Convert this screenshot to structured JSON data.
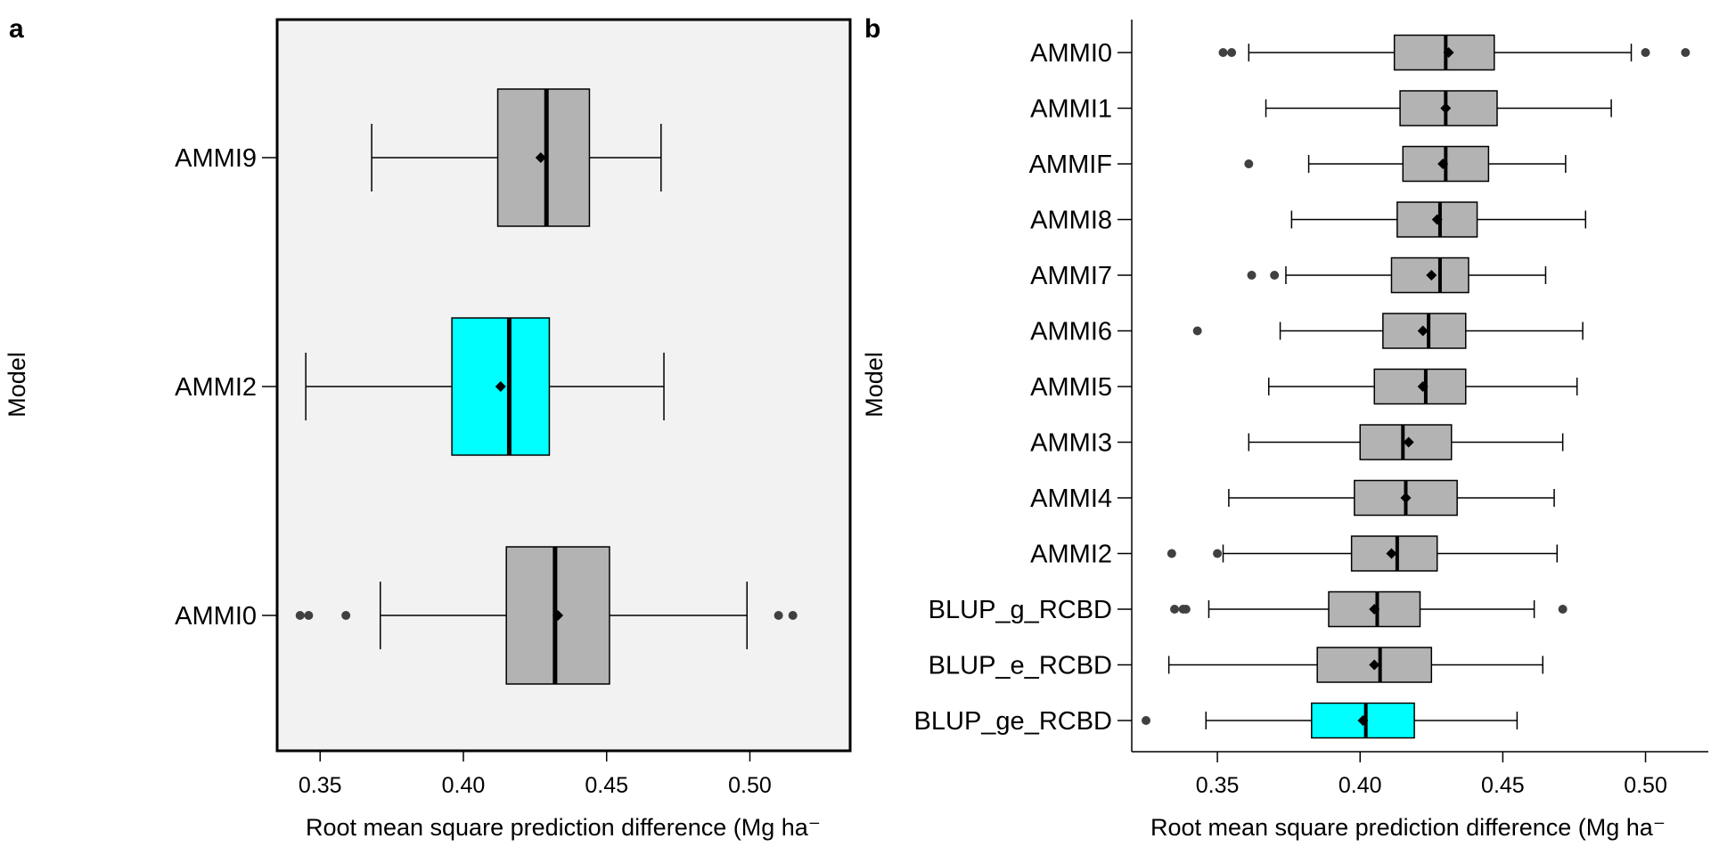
{
  "colors": {
    "box_default": "#b3b3b3",
    "box_highlight": "#00ffff",
    "outlier": "#404040",
    "panel_a_background": "#f2f2f2"
  },
  "chart_data": [
    {
      "type": "boxplot",
      "panel": "a",
      "title": "",
      "xlabel": "Root mean square prediction difference (Mg ha⁻",
      "ylabel": "Model",
      "xlim": [
        0.335,
        0.535
      ],
      "xticks": [
        0.35,
        0.4,
        0.45,
        0.5
      ],
      "xtick_labels": [
        "0.35",
        "0.40",
        "0.45",
        "0.50"
      ],
      "grid": false,
      "categories": [
        "AMMI9",
        "AMMI2",
        "AMMI0"
      ],
      "boxes": [
        {
          "label": "AMMI9",
          "whisker_low": 0.368,
          "q1": 0.412,
          "median": 0.429,
          "q3": 0.444,
          "whisker_high": 0.469,
          "mean": 0.427,
          "outliers": [],
          "highlight": false
        },
        {
          "label": "AMMI2",
          "whisker_low": 0.345,
          "q1": 0.396,
          "median": 0.416,
          "q3": 0.43,
          "whisker_high": 0.47,
          "mean": 0.413,
          "outliers": [],
          "highlight": true
        },
        {
          "label": "AMMI0",
          "whisker_low": 0.371,
          "q1": 0.415,
          "median": 0.432,
          "q3": 0.451,
          "whisker_high": 0.499,
          "mean": 0.433,
          "outliers": [
            0.343,
            0.346,
            0.359,
            0.51,
            0.515
          ],
          "highlight": false
        }
      ]
    },
    {
      "type": "boxplot",
      "panel": "b",
      "title": "",
      "xlabel": "Root mean square prediction difference (Mg ha⁻",
      "ylabel": "Model",
      "xlim": [
        0.32,
        0.522
      ],
      "xticks": [
        0.35,
        0.4,
        0.45,
        0.5
      ],
      "xtick_labels": [
        "0.35",
        "0.40",
        "0.45",
        "0.50"
      ],
      "grid": false,
      "categories": [
        "AMMI0",
        "AMMI1",
        "AMMIF",
        "AMMI8",
        "AMMI7",
        "AMMI6",
        "AMMI5",
        "AMMI3",
        "AMMI4",
        "AMMI2",
        "BLUP_g_RCBD",
        "BLUP_e_RCBD",
        "BLUP_ge_RCBD"
      ],
      "boxes": [
        {
          "label": "AMMI0",
          "whisker_low": 0.361,
          "q1": 0.412,
          "median": 0.43,
          "q3": 0.447,
          "whisker_high": 0.495,
          "mean": 0.431,
          "outliers": [
            0.352,
            0.355,
            0.5,
            0.514
          ],
          "highlight": false
        },
        {
          "label": "AMMI1",
          "whisker_low": 0.367,
          "q1": 0.414,
          "median": 0.43,
          "q3": 0.448,
          "whisker_high": 0.488,
          "mean": 0.43,
          "outliers": [],
          "highlight": false
        },
        {
          "label": "AMMIF",
          "whisker_low": 0.382,
          "q1": 0.415,
          "median": 0.43,
          "q3": 0.445,
          "whisker_high": 0.472,
          "mean": 0.429,
          "outliers": [
            0.361
          ],
          "highlight": false
        },
        {
          "label": "AMMI8",
          "whisker_low": 0.376,
          "q1": 0.413,
          "median": 0.428,
          "q3": 0.441,
          "whisker_high": 0.479,
          "mean": 0.427,
          "outliers": [],
          "highlight": false
        },
        {
          "label": "AMMI7",
          "whisker_low": 0.374,
          "q1": 0.411,
          "median": 0.428,
          "q3": 0.438,
          "whisker_high": 0.465,
          "mean": 0.425,
          "outliers": [
            0.362,
            0.37
          ],
          "highlight": false
        },
        {
          "label": "AMMI6",
          "whisker_low": 0.372,
          "q1": 0.408,
          "median": 0.424,
          "q3": 0.437,
          "whisker_high": 0.478,
          "mean": 0.422,
          "outliers": [
            0.343
          ],
          "highlight": false
        },
        {
          "label": "AMMI5",
          "whisker_low": 0.368,
          "q1": 0.405,
          "median": 0.423,
          "q3": 0.437,
          "whisker_high": 0.476,
          "mean": 0.422,
          "outliers": [],
          "highlight": false
        },
        {
          "label": "AMMI3",
          "whisker_low": 0.361,
          "q1": 0.4,
          "median": 0.415,
          "q3": 0.432,
          "whisker_high": 0.471,
          "mean": 0.417,
          "outliers": [],
          "highlight": false
        },
        {
          "label": "AMMI4",
          "whisker_low": 0.354,
          "q1": 0.398,
          "median": 0.416,
          "q3": 0.434,
          "whisker_high": 0.468,
          "mean": 0.416,
          "outliers": [],
          "highlight": false
        },
        {
          "label": "AMMI2",
          "whisker_low": 0.352,
          "q1": 0.397,
          "median": 0.413,
          "q3": 0.427,
          "whisker_high": 0.469,
          "mean": 0.411,
          "outliers": [
            0.334,
            0.35
          ],
          "highlight": false
        },
        {
          "label": "BLUP_g_RCBD",
          "whisker_low": 0.347,
          "q1": 0.389,
          "median": 0.406,
          "q3": 0.421,
          "whisker_high": 0.461,
          "mean": 0.405,
          "outliers": [
            0.335,
            0.338,
            0.339,
            0.471
          ],
          "highlight": false
        },
        {
          "label": "BLUP_e_RCBD",
          "whisker_low": 0.333,
          "q1": 0.385,
          "median": 0.407,
          "q3": 0.425,
          "whisker_high": 0.464,
          "mean": 0.405,
          "outliers": [],
          "highlight": false
        },
        {
          "label": "BLUP_ge_RCBD",
          "whisker_low": 0.346,
          "q1": 0.383,
          "median": 0.402,
          "q3": 0.419,
          "whisker_high": 0.455,
          "mean": 0.401,
          "outliers": [
            0.325
          ],
          "highlight": true
        }
      ]
    }
  ]
}
